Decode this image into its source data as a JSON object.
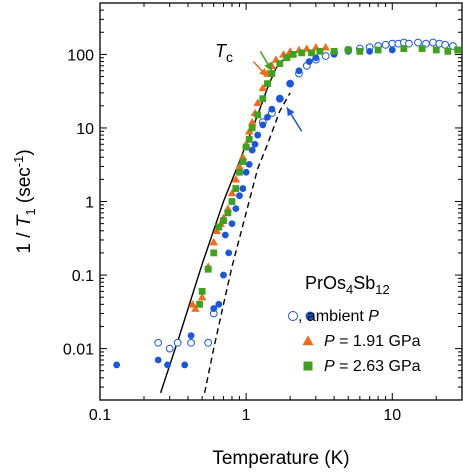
{
  "chart_data": {
    "type": "scatter",
    "xscale": "log",
    "yscale": "log",
    "xlim": [
      0.1,
      30
    ],
    "ylim": [
      0.002,
      500
    ],
    "xlabel": "Temperature (K)",
    "ylabel": "1 / T1 (sec-1)",
    "ylabel_parts": {
      "pre": "1 / ",
      "T": "T",
      "sub1": "1",
      "mid": " (sec",
      "sup": "-1",
      "post": ")"
    },
    "xticks": [
      {
        "value": 0.1,
        "label": "0.1"
      },
      {
        "value": 1,
        "label": "1"
      },
      {
        "value": 10,
        "label": "10"
      }
    ],
    "yticks": [
      {
        "value": 0.01,
        "label": "0.01"
      },
      {
        "value": 0.1,
        "label": "0.1"
      },
      {
        "value": 1,
        "label": "1"
      },
      {
        "value": 10,
        "label": "10"
      },
      {
        "value": 100,
        "label": "100"
      }
    ],
    "compound": {
      "pre": "PrOs",
      "sub1": "4",
      "mid": "Sb",
      "sub2": "12"
    },
    "tc_annotation": {
      "T": "T",
      "sub": "c"
    },
    "grid": false,
    "legend_position": "bottom-right",
    "series": [
      {
        "name": "ambient P (open)",
        "marker": "open-circle",
        "color": "#1a56e0",
        "points": [
          [
            0.25,
            0.012
          ],
          [
            0.3,
            0.01
          ],
          [
            0.34,
            0.012
          ],
          [
            0.42,
            0.012
          ],
          [
            0.55,
            0.012
          ],
          [
            0.6,
            0.03
          ],
          [
            1.3,
            12
          ],
          [
            1.5,
            16
          ],
          [
            1.7,
            25
          ],
          [
            2.0,
            40
          ],
          [
            2.3,
            55
          ],
          [
            2.6,
            70
          ],
          [
            3.0,
            85
          ],
          [
            3.5,
            95
          ],
          [
            4.0,
            105
          ],
          [
            5.0,
            115
          ],
          [
            6.0,
            120
          ],
          [
            7.0,
            125
          ],
          [
            8.0,
            130
          ],
          [
            9.0,
            135
          ],
          [
            10.0,
            140
          ],
          [
            11.0,
            140
          ],
          [
            12.0,
            145
          ],
          [
            13.0,
            140
          ],
          [
            15.0,
            145
          ],
          [
            17.0,
            140
          ],
          [
            19.0,
            145
          ],
          [
            21.0,
            140
          ],
          [
            23.0,
            135
          ],
          [
            26.0,
            130
          ]
        ]
      },
      {
        "name": "ambient P (filled)",
        "marker": "filled-circle",
        "color": "#1a56e0",
        "points": [
          [
            0.13,
            0.006
          ],
          [
            0.25,
            0.007
          ],
          [
            0.29,
            0.006
          ],
          [
            0.38,
            0.006
          ],
          [
            0.42,
            0.015
          ],
          [
            0.6,
            0.035
          ],
          [
            0.65,
            0.04
          ],
          [
            0.7,
            0.1
          ],
          [
            0.72,
            0.35
          ],
          [
            0.76,
            0.2
          ],
          [
            0.8,
            0.5
          ],
          [
            0.85,
            0.8
          ],
          [
            0.9,
            1.2
          ],
          [
            0.95,
            1.5
          ],
          [
            1.0,
            2.5
          ],
          [
            1.05,
            3.2
          ],
          [
            1.1,
            5
          ],
          [
            1.15,
            6
          ],
          [
            1.2,
            8
          ],
          [
            1.3,
            11
          ],
          [
            1.4,
            14
          ],
          [
            1.5,
            18
          ],
          [
            1.7,
            25
          ],
          [
            2.0,
            40
          ],
          [
            2.3,
            60
          ],
          [
            2.7,
            80
          ],
          [
            3.0,
            90
          ],
          [
            4.0,
            100
          ],
          [
            5.0,
            110
          ],
          [
            7.0,
            110
          ],
          [
            10.0,
            115
          ]
        ]
      },
      {
        "name": "P = 1.91 GPa",
        "marker": "triangle",
        "color": "#f26a1b",
        "points": [
          [
            0.43,
            0.04
          ],
          [
            0.45,
            0.035
          ],
          [
            0.5,
            0.05
          ],
          [
            0.55,
            0.13
          ],
          [
            0.6,
            0.28
          ],
          [
            0.63,
            0.4
          ],
          [
            0.67,
            0.5
          ],
          [
            0.7,
            0.6
          ],
          [
            0.75,
            0.8
          ],
          [
            0.8,
            1.3
          ],
          [
            0.85,
            2
          ],
          [
            0.9,
            3
          ],
          [
            0.95,
            4
          ],
          [
            1.0,
            6
          ],
          [
            1.05,
            9
          ],
          [
            1.1,
            12
          ],
          [
            1.15,
            16
          ],
          [
            1.2,
            22
          ],
          [
            1.3,
            35
          ],
          [
            1.4,
            55
          ],
          [
            1.5,
            70
          ],
          [
            1.6,
            85
          ],
          [
            1.8,
            100
          ],
          [
            2.0,
            110
          ],
          [
            2.3,
            115
          ],
          [
            2.6,
            120
          ],
          [
            3.0,
            125
          ],
          [
            3.5,
            125
          ]
        ]
      },
      {
        "name": "P = 2.63 GPa",
        "marker": "square",
        "color": "#3ea21e",
        "points": [
          [
            0.48,
            0.04
          ],
          [
            0.5,
            0.06
          ],
          [
            0.55,
            0.12
          ],
          [
            0.6,
            0.2
          ],
          [
            0.65,
            0.45
          ],
          [
            0.7,
            0.55
          ],
          [
            0.75,
            0.7
          ],
          [
            0.8,
            1.0
          ],
          [
            0.85,
            1.5
          ],
          [
            0.9,
            2.5
          ],
          [
            0.95,
            3.5
          ],
          [
            1.0,
            5.5
          ],
          [
            1.05,
            7
          ],
          [
            1.1,
            10
          ],
          [
            1.2,
            15
          ],
          [
            1.3,
            25
          ],
          [
            1.4,
            40
          ],
          [
            1.5,
            55
          ],
          [
            1.7,
            75
          ],
          [
            1.9,
            90
          ],
          [
            2.1,
            100
          ],
          [
            2.4,
            105
          ],
          [
            2.8,
            105
          ],
          [
            3.2,
            110
          ],
          [
            4.0,
            110
          ],
          [
            5.0,
            115
          ],
          [
            6.0,
            110
          ],
          [
            8.0,
            115
          ],
          [
            12.0,
            120
          ],
          [
            16.0,
            120
          ],
          [
            20.0,
            115
          ],
          [
            24.0,
            110
          ],
          [
            28.0,
            115
          ]
        ]
      }
    ],
    "lines": [
      {
        "name": "solid fit",
        "style": "solid",
        "color": "#000000",
        "points": [
          [
            0.26,
            0.0025
          ],
          [
            0.35,
            0.015
          ],
          [
            0.5,
            0.14
          ],
          [
            0.7,
            1.0
          ],
          [
            0.9,
            3.5
          ],
          [
            1.0,
            6
          ],
          [
            1.2,
            15
          ],
          [
            1.4,
            35
          ],
          [
            1.6,
            65
          ],
          [
            1.8,
            85
          ]
        ]
      },
      {
        "name": "dashed fit",
        "style": "dashed",
        "color": "#000000",
        "points": [
          [
            0.52,
            0.0025
          ],
          [
            0.6,
            0.01
          ],
          [
            0.7,
            0.04
          ],
          [
            0.8,
            0.13
          ],
          [
            1.0,
            0.7
          ],
          [
            1.2,
            2.8
          ],
          [
            1.4,
            6
          ],
          [
            1.7,
            17
          ],
          [
            2.0,
            30
          ]
        ]
      }
    ],
    "arrows": [
      {
        "color": "#f26a1b",
        "from": [
          1.12,
          80
        ],
        "to": [
          1.4,
          50
        ]
      },
      {
        "color": "#3ea21e",
        "from": [
          1.25,
          110
        ],
        "to": [
          1.5,
          60
        ]
      },
      {
        "color": "#1a56e0",
        "from": [
          2.4,
          9
        ],
        "to": [
          1.9,
          19
        ]
      }
    ],
    "legend": [
      {
        "marker": "open-circle",
        "color": "#1a56e0",
        "label_pre": ", ambient ",
        "label_var": "P",
        "label_post": ""
      },
      {
        "marker": "triangle",
        "color": "#f26a1b",
        "label_pre": "",
        "label_var": "P",
        "label_post": " = 1.91 GPa"
      },
      {
        "marker": "square",
        "color": "#3ea21e",
        "label_pre": "",
        "label_var": "P",
        "label_post": " = 2.63 GPa"
      }
    ]
  }
}
